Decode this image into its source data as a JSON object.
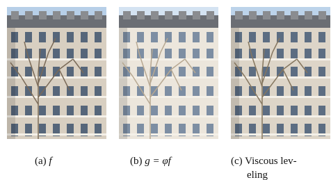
{
  "figure": {
    "panels": [
      {
        "label": "(a)",
        "caption": [
          "f"
        ]
      },
      {
        "label": "(b)",
        "caption": [
          "g = φf"
        ]
      },
      {
        "label": "(c)",
        "caption": [
          "Viscous lev-",
          "eling"
        ]
      }
    ]
  }
}
